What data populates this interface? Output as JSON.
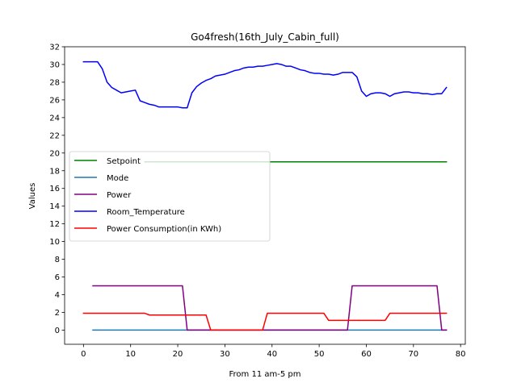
{
  "chart_data": {
    "type": "line",
    "title": "Go4fresh(16th_July_Cabin_full)",
    "xlabel": "From 11 am-5 pm",
    "ylabel": "Values",
    "xlim": [
      -4,
      81
    ],
    "ylim": [
      -1.6,
      32
    ],
    "xticks": [
      0,
      10,
      20,
      30,
      40,
      50,
      60,
      70,
      80
    ],
    "yticks": [
      0,
      2,
      4,
      6,
      8,
      10,
      12,
      14,
      16,
      18,
      20,
      22,
      24,
      26,
      28,
      30,
      32
    ],
    "grid": false,
    "legend_placement": "center-left",
    "series": [
      {
        "name": "Setpoint",
        "color": "#008000",
        "points": [
          [
            13,
            19
          ],
          [
            77,
            19
          ]
        ]
      },
      {
        "name": "Mode",
        "color": "#1f77b4",
        "points": [
          [
            2,
            0
          ],
          [
            77,
            0
          ]
        ]
      },
      {
        "name": "Power",
        "color": "#800080",
        "points": [
          [
            2,
            5
          ],
          [
            21,
            5
          ],
          [
            22,
            0
          ],
          [
            56,
            0
          ],
          [
            57,
            5
          ],
          [
            75,
            5
          ],
          [
            76,
            0
          ],
          [
            77,
            0
          ]
        ]
      },
      {
        "name": "Room_Temperature",
        "color": "#0000ff",
        "points": [
          [
            0,
            30.3
          ],
          [
            1,
            30.3
          ],
          [
            2,
            30.3
          ],
          [
            3,
            30.3
          ],
          [
            4,
            29.5
          ],
          [
            5,
            28
          ],
          [
            6,
            27.4
          ],
          [
            7,
            27.1
          ],
          [
            8,
            26.8
          ],
          [
            9,
            26.9
          ],
          [
            10,
            27
          ],
          [
            11,
            27.1
          ],
          [
            12,
            25.9
          ],
          [
            13,
            25.7
          ],
          [
            14,
            25.5
          ],
          [
            15,
            25.4
          ],
          [
            16,
            25.2
          ],
          [
            17,
            25.2
          ],
          [
            18,
            25.2
          ],
          [
            19,
            25.2
          ],
          [
            20,
            25.2
          ],
          [
            21,
            25.1
          ],
          [
            22,
            25.1
          ],
          [
            23,
            26.8
          ],
          [
            24,
            27.5
          ],
          [
            25,
            27.9
          ],
          [
            26,
            28.2
          ],
          [
            27,
            28.4
          ],
          [
            28,
            28.7
          ],
          [
            29,
            28.8
          ],
          [
            30,
            28.9
          ],
          [
            31,
            29.1
          ],
          [
            32,
            29.3
          ],
          [
            33,
            29.4
          ],
          [
            34,
            29.6
          ],
          [
            35,
            29.7
          ],
          [
            36,
            29.7
          ],
          [
            37,
            29.8
          ],
          [
            38,
            29.8
          ],
          [
            39,
            29.9
          ],
          [
            40,
            30
          ],
          [
            41,
            30.1
          ],
          [
            42,
            30
          ],
          [
            43,
            29.8
          ],
          [
            44,
            29.8
          ],
          [
            45,
            29.6
          ],
          [
            46,
            29.4
          ],
          [
            47,
            29.3
          ],
          [
            48,
            29.1
          ],
          [
            49,
            29
          ],
          [
            50,
            29
          ],
          [
            51,
            28.9
          ],
          [
            52,
            28.9
          ],
          [
            53,
            28.8
          ],
          [
            54,
            28.9
          ],
          [
            55,
            29.1
          ],
          [
            56,
            29.1
          ],
          [
            57,
            29.1
          ],
          [
            58,
            28.6
          ],
          [
            59,
            27
          ],
          [
            60,
            26.4
          ],
          [
            61,
            26.7
          ],
          [
            62,
            26.8
          ],
          [
            63,
            26.8
          ],
          [
            64,
            26.7
          ],
          [
            65,
            26.4
          ],
          [
            66,
            26.7
          ],
          [
            67,
            26.8
          ],
          [
            68,
            26.9
          ],
          [
            69,
            26.9
          ],
          [
            70,
            26.8
          ],
          [
            71,
            26.8
          ],
          [
            72,
            26.7
          ],
          [
            73,
            26.7
          ],
          [
            74,
            26.6
          ],
          [
            75,
            26.7
          ],
          [
            76,
            26.7
          ],
          [
            77,
            27.4
          ]
        ]
      },
      {
        "name": "Power Consumption(in KWh)",
        "color": "#ff0000",
        "points": [
          [
            0,
            1.9
          ],
          [
            13,
            1.9
          ],
          [
            14,
            1.7
          ],
          [
            26,
            1.7
          ],
          [
            27,
            0
          ],
          [
            38,
            0
          ],
          [
            39,
            1.9
          ],
          [
            51,
            1.9
          ],
          [
            52,
            1.1
          ],
          [
            64,
            1.1
          ],
          [
            65,
            1.9
          ],
          [
            77,
            1.9
          ]
        ]
      }
    ]
  }
}
